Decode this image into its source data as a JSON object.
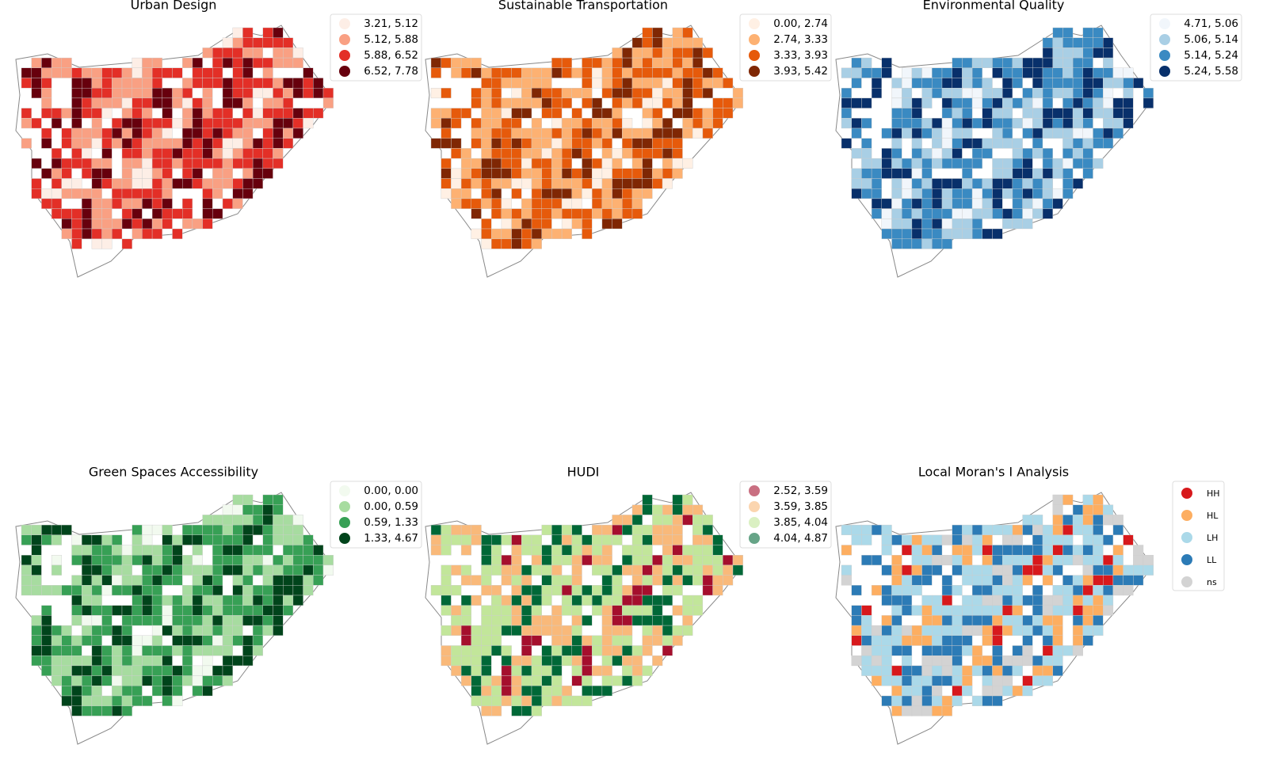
{
  "panels": [
    {
      "title": "Urban Design",
      "legend": [
        {
          "label": "3.21, 5.12",
          "color": "#fdeee6"
        },
        {
          "label": "5.12, 5.88",
          "color": "#f9a083"
        },
        {
          "label": "5.88, 6.52",
          "color": "#e32f27"
        },
        {
          "label": "6.52, 7.78",
          "color": "#67000d"
        }
      ]
    },
    {
      "title": "Sustainable Transportation",
      "legend": [
        {
          "label": "0.00, 2.74",
          "color": "#fff0e4"
        },
        {
          "label": "2.74, 3.33",
          "color": "#fdb172"
        },
        {
          "label": "3.33, 3.93",
          "color": "#e65a0b"
        },
        {
          "label": "3.93, 5.42",
          "color": "#7f2704"
        }
      ]
    },
    {
      "title": "Environmental Quality",
      "legend": [
        {
          "label": "4.71, 5.06",
          "color": "#f1f6fb"
        },
        {
          "label": "5.06, 5.14",
          "color": "#a9cfe5"
        },
        {
          "label": "5.14, 5.24",
          "color": "#3a8ac2"
        },
        {
          "label": "5.24, 5.58",
          "color": "#08306b"
        }
      ]
    },
    {
      "title": "Green Spaces Accessibility",
      "legend": [
        {
          "label": "0.00, 0.00",
          "color": "#f2faef"
        },
        {
          "label": "0.00, 0.59",
          "color": "#a7dca0"
        },
        {
          "label": "0.59, 1.33",
          "color": "#37a055"
        },
        {
          "label": "1.33, 4.67",
          "color": "#00441b"
        }
      ]
    },
    {
      "title": "HUDI",
      "legend": [
        {
          "label": "2.52, 3.59",
          "color": "#a50f2d"
        },
        {
          "label": "3.59, 3.85",
          "color": "#f9b97a"
        },
        {
          "label": "3.85, 4.04",
          "color": "#c2e69a"
        },
        {
          "label": "4.04, 4.87",
          "color": "#006837"
        }
      ]
    },
    {
      "title": "Local Moran's I Analysis",
      "legend": [
        {
          "label": "HH",
          "color": "#d7191c"
        },
        {
          "label": "HL",
          "color": "#fdae61"
        },
        {
          "label": "LH",
          "color": "#abd9e9"
        },
        {
          "label": "LL",
          "color": "#2c7bb6"
        },
        {
          "label": "ns",
          "color": "#d3d3d3"
        }
      ]
    }
  ]
}
